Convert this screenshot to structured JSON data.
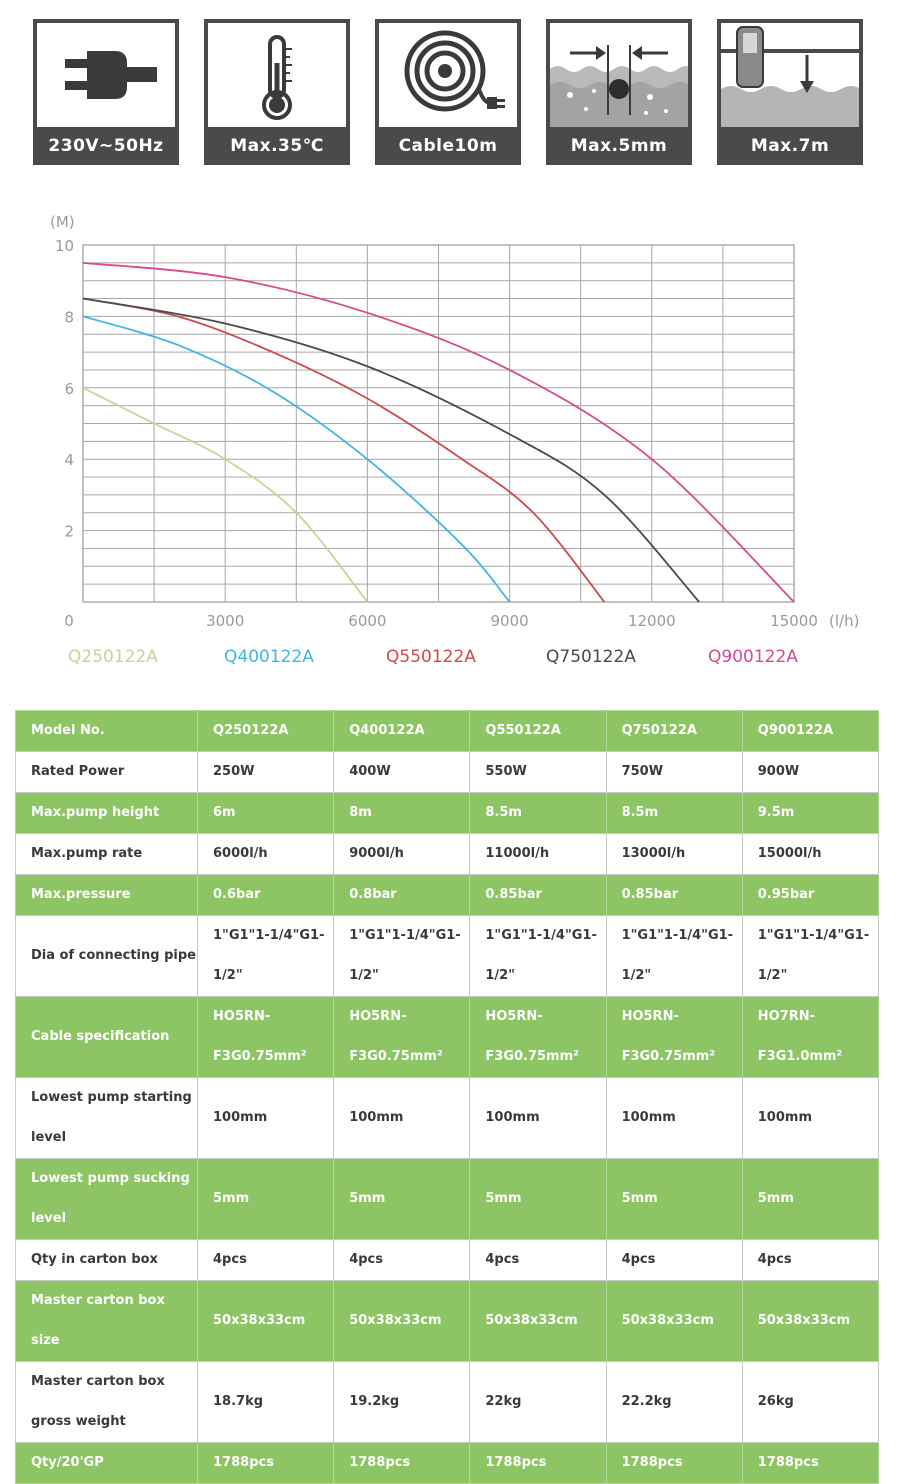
{
  "spec_icons": [
    {
      "icon": "plug-icon",
      "label": "230V~50Hz"
    },
    {
      "icon": "thermometer-icon",
      "label": "Max.35℃"
    },
    {
      "icon": "cable-reel-icon",
      "label": "Cable10m"
    },
    {
      "icon": "particle-size-icon",
      "label": "Max.5mm"
    },
    {
      "icon": "immersion-depth-icon",
      "label": "Max.7m"
    }
  ],
  "chart_data": {
    "type": "line",
    "title": "",
    "xlabel": "(l/h)",
    "ylabel": "(M)",
    "xlim": [
      0,
      15000
    ],
    "ylim": [
      0,
      10
    ],
    "xticks": [
      "0",
      "3000",
      "6000",
      "9000",
      "12000",
      "15000"
    ],
    "yticks": [
      "2",
      "4",
      "6",
      "8",
      "10"
    ],
    "grid": true,
    "legend_position": "bottom",
    "series": [
      {
        "name": "Q250122A",
        "color": "#c6d59a",
        "x": [
          0,
          1500,
          3000,
          4500,
          6000
        ],
        "y": [
          6.0,
          5.0,
          4.0,
          2.5,
          0.0
        ]
      },
      {
        "name": "Q400122A",
        "color": "#3fb6e3",
        "x": [
          0,
          2000,
          4000,
          6000,
          8000,
          9000
        ],
        "y": [
          8.0,
          7.2,
          5.9,
          4.0,
          1.6,
          0.0
        ]
      },
      {
        "name": "Q550122A",
        "color": "#cd4a4a",
        "x": [
          0,
          2000,
          4000,
          6000,
          8000,
          9500,
          11000
        ],
        "y": [
          8.5,
          8.0,
          7.0,
          5.7,
          4.0,
          2.5,
          0.0
        ]
      },
      {
        "name": "Q750122A",
        "color": "#4a4a4a",
        "x": [
          0,
          3000,
          6000,
          9000,
          11000,
          13000
        ],
        "y": [
          8.5,
          7.8,
          6.6,
          4.7,
          3.0,
          0.0
        ]
      },
      {
        "name": "Q900122A",
        "color": "#d8498f",
        "x": [
          0,
          3000,
          6000,
          9000,
          12000,
          15000
        ],
        "y": [
          9.5,
          9.1,
          8.1,
          6.5,
          4.0,
          0.0
        ]
      }
    ]
  },
  "table": {
    "rows": [
      {
        "label": "Model No.",
        "values": [
          "Q250122A",
          "Q400122A",
          "Q550122A",
          "Q750122A",
          "Q900122A"
        ]
      },
      {
        "label": "Rated Power",
        "values": [
          "250W",
          "400W",
          "550W",
          "750W",
          "900W"
        ]
      },
      {
        "label": "Max.pump height",
        "values": [
          "6m",
          "8m",
          "8.5m",
          "8.5m",
          "9.5m"
        ]
      },
      {
        "label": "Max.pump rate",
        "values": [
          "6000l/h",
          "9000l/h",
          "11000l/h",
          "13000l/h",
          "15000l/h"
        ]
      },
      {
        "label": "Max.pressure",
        "values": [
          "0.6bar",
          "0.8bar",
          "0.85bar",
          "0.85bar",
          "0.95bar"
        ]
      },
      {
        "label": "Dia of connecting pipe",
        "values": [
          "1\"G1\"1-1/4\"G1-1/2\"",
          "1\"G1\"1-1/4\"G1-1/2\"",
          "1\"G1\"1-1/4\"G1-1/2\"",
          "1\"G1\"1-1/4\"G1-1/2\"",
          "1\"G1\"1-1/4\"G1-1/2\""
        ]
      },
      {
        "label": "Cable specification",
        "values": [
          "HO5RN-F3G0.75mm²",
          "HO5RN-F3G0.75mm²",
          "HO5RN-F3G0.75mm²",
          "HO5RN-F3G0.75mm²",
          "HO7RN-F3G1.0mm²"
        ]
      },
      {
        "label": "Lowest pump starting level",
        "values": [
          "100mm",
          "100mm",
          "100mm",
          "100mm",
          "100mm"
        ]
      },
      {
        "label": "Lowest pump sucking level",
        "values": [
          "5mm",
          "5mm",
          "5mm",
          "5mm",
          "5mm"
        ]
      },
      {
        "label": "Qty in carton box",
        "values": [
          "4pcs",
          "4pcs",
          "4pcs",
          "4pcs",
          "4pcs"
        ]
      },
      {
        "label": "Master carton box size",
        "values": [
          "50x38x33cm",
          "50x38x33cm",
          "50x38x33cm",
          "50x38x33cm",
          "50x38x33cm"
        ]
      },
      {
        "label": "Master carton box gross weight",
        "values": [
          "18.7kg",
          "19.2kg",
          "22kg",
          "22.2kg",
          "26kg"
        ]
      },
      {
        "label": "Qty/20'GP",
        "values": [
          "1788pcs",
          "1788pcs",
          "1788pcs",
          "1788pcs",
          "1788pcs"
        ]
      }
    ]
  }
}
